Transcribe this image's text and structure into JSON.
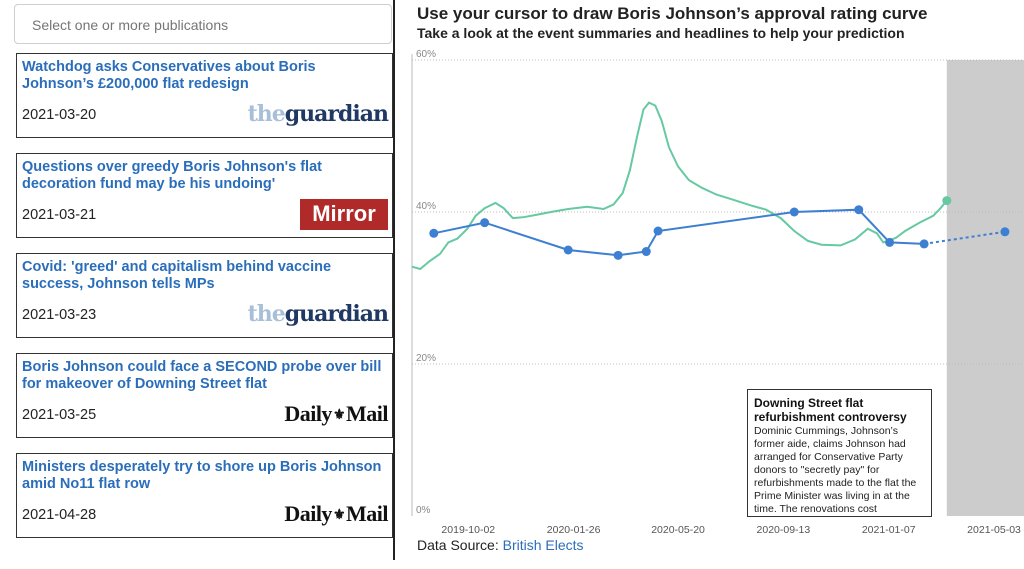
{
  "sidebar": {
    "select_placeholder": "Select one or more publications",
    "articles": [
      {
        "title": "Watchdog asks Conservatives about Boris Johnson’s £200,000 flat redesign",
        "date": "2021-03-20",
        "publication": "theguardian"
      },
      {
        "title": "Questions over greedy Boris Johnson's flat decoration fund may be his undoing'",
        "date": "2021-03-21",
        "publication": "Mirror"
      },
      {
        "title": "Covid: 'greed' and capitalism behind vaccine success, Johnson tells MPs",
        "date": "2021-03-23",
        "publication": "theguardian"
      },
      {
        "title": "Boris Johnson could face a SECOND probe over bill for makeover of Downing Street flat",
        "date": "2021-03-25",
        "publication": "Daily Mail"
      },
      {
        "title": "Ministers desperately try to shore up Boris Johnson amid No11 flat row",
        "date": "2021-04-28",
        "publication": "Daily Mail"
      }
    ],
    "logos": {
      "guardian_the": "the",
      "guardian_main": "guardian",
      "mirror": "Mirror",
      "mail_left": "Daily",
      "mail_crest": "⚜",
      "mail_right": "Mail"
    }
  },
  "chart": {
    "title": "Use your cursor to draw Boris Johnson’s approval rating curve",
    "subtitle": "Take a look at the event summaries and headlines to help your prediction"
  },
  "chart_data": {
    "type": "line",
    "ylim": [
      0,
      60
    ],
    "y_ticks": [
      0,
      20,
      40,
      60
    ],
    "y_tick_labels": [
      "0%",
      "20%",
      "40%",
      "60%"
    ],
    "x_ticks": [
      "2019-10-02",
      "2020-01-26",
      "2020-05-20",
      "2020-09-13",
      "2021-01-07",
      "2021-05-03"
    ],
    "x_range": [
      "2019-08-01",
      "2021-06-05"
    ],
    "shaded_region": [
      "2021-03-12",
      "2021-06-05"
    ],
    "gridlines": "horizontal-dotted",
    "series": [
      {
        "color": "#66c9a2",
        "points": [
          [
            "2019-08-01",
            32.8
          ],
          [
            "2019-08-10",
            32.5
          ],
          [
            "2019-08-20",
            33.5
          ],
          [
            "2019-09-01",
            34.5
          ],
          [
            "2019-09-10",
            36
          ],
          [
            "2019-09-20",
            36.5
          ],
          [
            "2019-10-01",
            37.8
          ],
          [
            "2019-10-10",
            39.5
          ],
          [
            "2019-10-20",
            40.5
          ],
          [
            "2019-11-01",
            41.2
          ],
          [
            "2019-11-10",
            40.5
          ],
          [
            "2019-11-20",
            39.2
          ],
          [
            "2019-12-01",
            39.3
          ],
          [
            "2019-12-15",
            39.6
          ],
          [
            "2020-01-01",
            40
          ],
          [
            "2020-01-20",
            40.4
          ],
          [
            "2020-02-10",
            40.7
          ],
          [
            "2020-02-28",
            40.4
          ],
          [
            "2020-03-10",
            41
          ],
          [
            "2020-03-20",
            42.5
          ],
          [
            "2020-03-28",
            45.5
          ],
          [
            "2020-04-05",
            50
          ],
          [
            "2020-04-12",
            53.5
          ],
          [
            "2020-04-18",
            54.4
          ],
          [
            "2020-04-25",
            54
          ],
          [
            "2020-05-02",
            52
          ],
          [
            "2020-05-10",
            48.5
          ],
          [
            "2020-05-20",
            46
          ],
          [
            "2020-06-01",
            44.2
          ],
          [
            "2020-06-15",
            43.2
          ],
          [
            "2020-07-01",
            42.3
          ],
          [
            "2020-07-20",
            41.6
          ],
          [
            "2020-08-10",
            40.8
          ],
          [
            "2020-08-25",
            40.3
          ],
          [
            "2020-09-10",
            39.2
          ],
          [
            "2020-09-25",
            37.5
          ],
          [
            "2020-10-10",
            36.2
          ],
          [
            "2020-10-25",
            35.7
          ],
          [
            "2020-11-15",
            35.6
          ],
          [
            "2020-12-01",
            36.4
          ],
          [
            "2020-12-15",
            37.8
          ],
          [
            "2020-12-25",
            37.2
          ],
          [
            "2021-01-01",
            36
          ],
          [
            "2021-01-15",
            36.6
          ],
          [
            "2021-01-25",
            37.5
          ],
          [
            "2021-02-10",
            38.6
          ],
          [
            "2021-02-25",
            39.5
          ],
          [
            "2021-03-05",
            40.5
          ],
          [
            "2021-03-12",
            41.5
          ]
        ],
        "end_marker": [
          "2021-03-12",
          41.5
        ]
      },
      {
        "color": "#3d7fd1",
        "points": [
          [
            "2019-08-25",
            37.2
          ],
          [
            "2019-10-20",
            38.6
          ],
          [
            "2020-01-20",
            35
          ],
          [
            "2020-03-15",
            34.3
          ],
          [
            "2020-04-15",
            34.8
          ],
          [
            "2020-04-28",
            37.5
          ],
          [
            "2020-09-25",
            40
          ],
          [
            "2020-12-05",
            40.3
          ],
          [
            "2021-01-08",
            36
          ],
          [
            "2021-02-15",
            35.8
          ]
        ],
        "projection": [
          [
            "2021-02-15",
            35.8
          ],
          [
            "2021-05-15",
            37.4
          ]
        ]
      }
    ]
  },
  "tooltip": {
    "title": "Downing Street flat refurbishment controversy",
    "body": "Dominic Cummings, Johnson’s former aide, claims Johnson had arranged for Conservative Party donors to \"secretly pay\" for refurbishments made to the flat the Prime Minister was living in at the time. The renovations cost"
  },
  "data_source": {
    "label": "Data Source: ",
    "link_text": "British Elects"
  }
}
